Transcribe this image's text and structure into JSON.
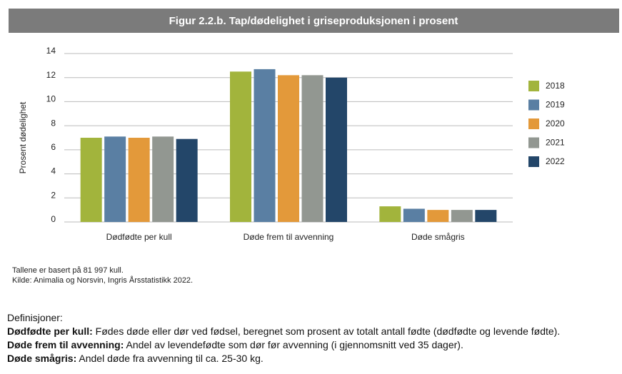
{
  "chart_data": {
    "type": "bar",
    "title": "Figur 2.2.b. Tap/dødelighet i griseproduksjonen i prosent",
    "ylabel": "Prosent dødelighet",
    "categories": [
      "Dødfødte per kull",
      "Døde frem til avvenning",
      "Døde smågris"
    ],
    "series": [
      {
        "name": "2018",
        "color": "#a2b43c",
        "values": [
          7.0,
          12.5,
          1.3
        ]
      },
      {
        "name": "2019",
        "color": "#5a7fa3",
        "values": [
          7.1,
          12.7,
          1.1
        ]
      },
      {
        "name": "2020",
        "color": "#e3993a",
        "values": [
          7.0,
          12.2,
          1.0
        ]
      },
      {
        "name": "2021",
        "color": "#929791",
        "values": [
          7.1,
          12.2,
          1.0
        ]
      },
      {
        "name": "2022",
        "color": "#234669",
        "values": [
          6.9,
          12.0,
          1.0
        ]
      }
    ],
    "ylim": [
      0,
      14
    ],
    "yticks": [
      0,
      2,
      4,
      6,
      8,
      10,
      12,
      14
    ],
    "grid": true,
    "legend": "right"
  },
  "notes": [
    "Tallene er basert på 81 997 kull.",
    "Kilde: Animalia og Norsvin, Ingris Årsstatistikk 2022."
  ],
  "definitions": {
    "heading": "Definisjoner:",
    "items": [
      {
        "term": "Dødfødte per kull:",
        "text": "Fødes døde eller dør ved fødsel, beregnet som prosent av totalt antall fødte (dødfødte og levende fødte)."
      },
      {
        "term": "Døde frem til avvenning:",
        "text": "Andel av levendefødte som dør før avvenning (i gjennomsnitt ved 35 dager)."
      },
      {
        "term": "Døde smågris:",
        "text": "Andel døde fra avvenning til ca. 25-30 kg."
      }
    ]
  }
}
